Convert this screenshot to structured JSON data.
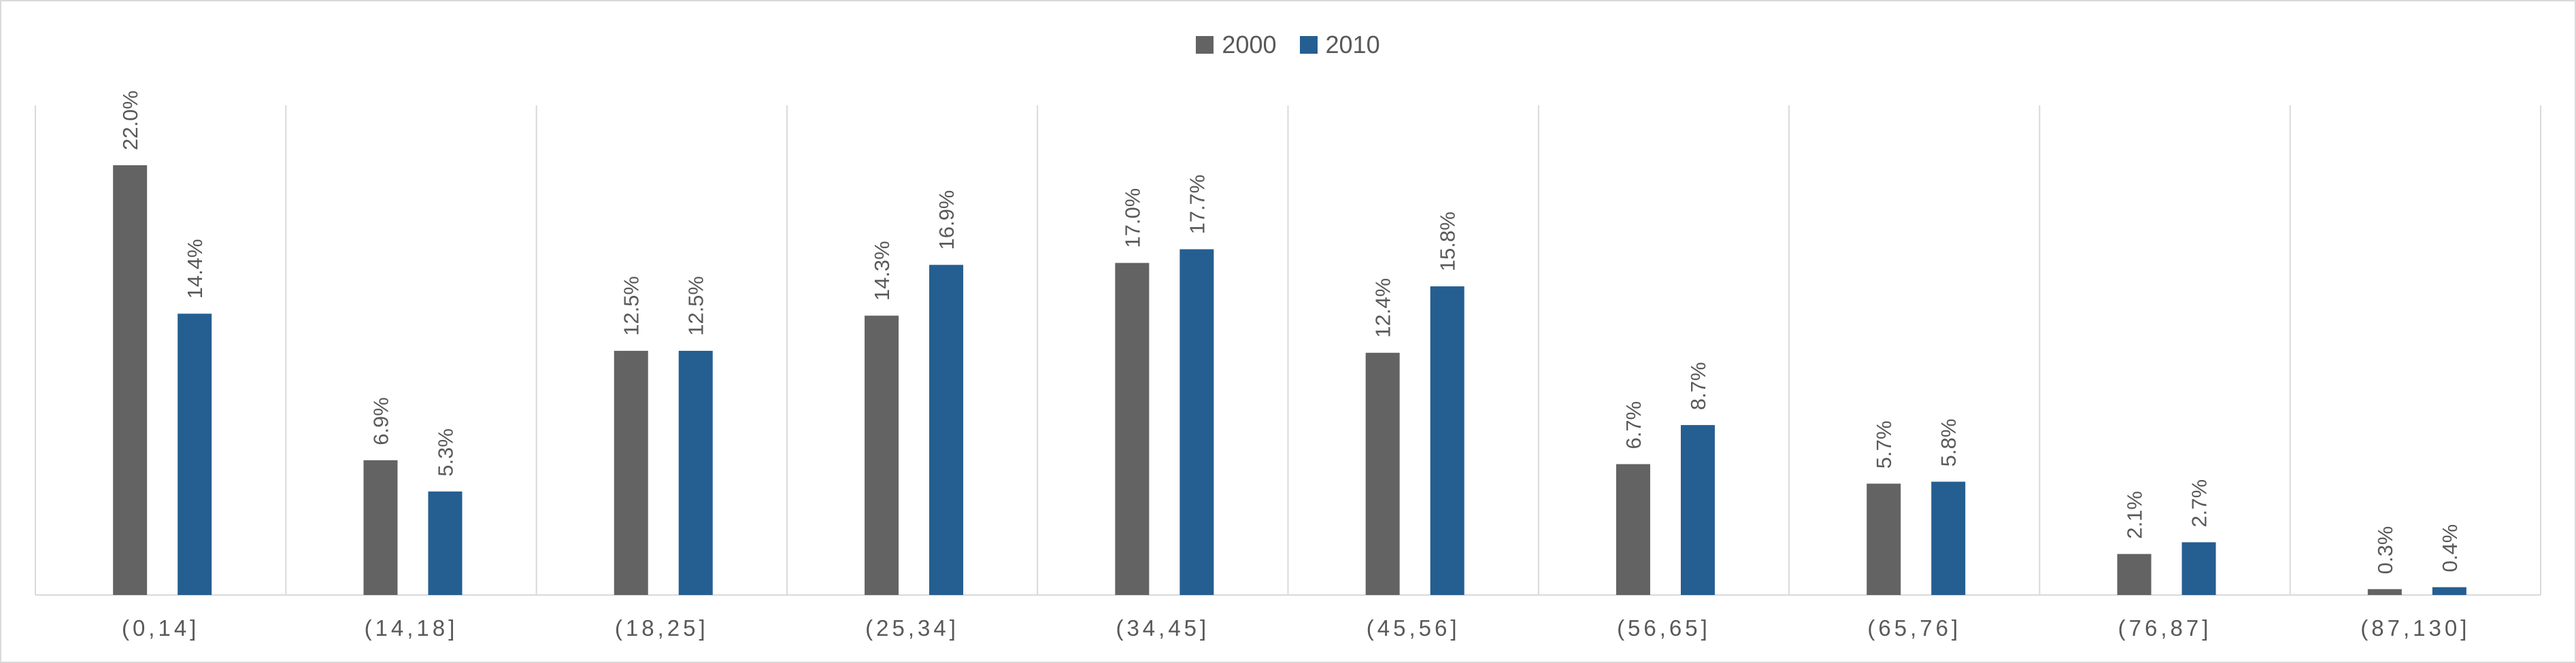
{
  "chart_data": {
    "type": "bar",
    "categories": [
      "(0,14]",
      "(14,18]",
      "(18,25]",
      "(25,34]",
      "(34,45]",
      "(45,56]",
      "(56,65]",
      "(65,76]",
      "(76,87]",
      "(87,130]"
    ],
    "series": [
      {
        "name": "2000",
        "color": "#636363",
        "values": [
          22.0,
          6.9,
          12.5,
          14.3,
          17.0,
          12.4,
          6.7,
          5.7,
          2.1,
          0.3
        ],
        "labels": [
          "22.0%",
          "6.9%",
          "12.5%",
          "14.3%",
          "17.0%",
          "12.4%",
          "6.7%",
          "5.7%",
          "2.1%",
          "0.3%"
        ]
      },
      {
        "name": "2010",
        "color": "#255e91",
        "values": [
          14.4,
          5.3,
          12.5,
          16.9,
          17.7,
          15.8,
          8.7,
          5.8,
          2.7,
          0.4
        ],
        "labels": [
          "14.4%",
          "5.3%",
          "12.5%",
          "16.9%",
          "17.7%",
          "15.8%",
          "8.7%",
          "5.8%",
          "2.7%",
          "0.4%"
        ]
      }
    ],
    "ylim": [
      0,
      25
    ],
    "legend": "top-center",
    "vertical_gridlines": true,
    "data_labels": "rotated-vertical"
  }
}
